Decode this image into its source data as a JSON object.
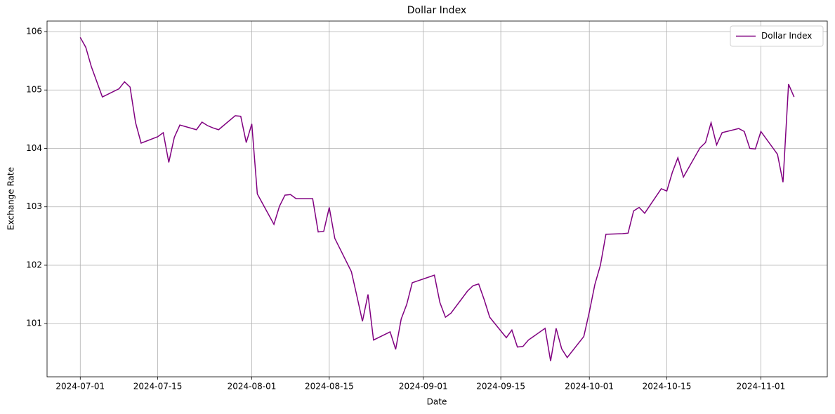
{
  "chart_data": {
    "type": "line",
    "title": "Dollar Index",
    "x_label": "Date",
    "y_label": "Exchange Rate",
    "x": [
      "2024-07-01",
      "2024-07-02",
      "2024-07-03",
      "2024-07-05",
      "2024-07-08",
      "2024-07-09",
      "2024-07-10",
      "2024-07-11",
      "2024-07-12",
      "2024-07-15",
      "2024-07-16",
      "2024-07-17",
      "2024-07-18",
      "2024-07-19",
      "2024-07-22",
      "2024-07-23",
      "2024-07-24",
      "2024-07-25",
      "2024-07-26",
      "2024-07-29",
      "2024-07-30",
      "2024-07-31",
      "2024-08-01",
      "2024-08-02",
      "2024-08-05",
      "2024-08-06",
      "2024-08-07",
      "2024-08-08",
      "2024-08-09",
      "2024-08-12",
      "2024-08-13",
      "2024-08-14",
      "2024-08-15",
      "2024-08-16",
      "2024-08-19",
      "2024-08-20",
      "2024-08-21",
      "2024-08-22",
      "2024-08-23",
      "2024-08-26",
      "2024-08-27",
      "2024-08-28",
      "2024-08-29",
      "2024-08-30",
      "2024-09-03",
      "2024-09-04",
      "2024-09-05",
      "2024-09-06",
      "2024-09-09",
      "2024-09-10",
      "2024-09-11",
      "2024-09-12",
      "2024-09-13",
      "2024-09-16",
      "2024-09-17",
      "2024-09-18",
      "2024-09-19",
      "2024-09-20",
      "2024-09-23",
      "2024-09-24",
      "2024-09-25",
      "2024-09-26",
      "2024-09-27",
      "2024-09-30",
      "2024-10-01",
      "2024-10-02",
      "2024-10-03",
      "2024-10-04",
      "2024-10-07",
      "2024-10-08",
      "2024-10-09",
      "2024-10-10",
      "2024-10-11",
      "2024-10-14",
      "2024-10-15",
      "2024-10-16",
      "2024-10-17",
      "2024-10-18",
      "2024-10-21",
      "2024-10-22",
      "2024-10-23",
      "2024-10-24",
      "2024-10-25",
      "2024-10-28",
      "2024-10-29",
      "2024-10-30",
      "2024-10-31",
      "2024-11-01",
      "2024-11-04",
      "2024-11-05",
      "2024-11-06",
      "2024-11-07"
    ],
    "series": [
      {
        "name": "Dollar Index",
        "color": "#800080",
        "values": [
          105.9,
          105.73,
          105.4,
          104.88,
          105.02,
          105.14,
          105.05,
          104.44,
          104.09,
          104.2,
          104.27,
          103.76,
          104.19,
          104.4,
          104.32,
          104.45,
          104.39,
          104.35,
          104.32,
          104.56,
          104.55,
          104.1,
          104.42,
          103.22,
          102.7,
          103.01,
          103.2,
          103.21,
          103.14,
          103.14,
          102.57,
          102.58,
          102.99,
          102.46,
          101.89,
          101.47,
          101.04,
          101.5,
          100.72,
          100.86,
          100.56,
          101.08,
          101.33,
          101.7,
          101.83,
          101.36,
          101.11,
          101.18,
          101.56,
          101.65,
          101.68,
          101.41,
          101.11,
          100.76,
          100.89,
          100.6,
          100.61,
          100.72,
          100.92,
          100.36,
          100.92,
          100.57,
          100.42,
          100.78,
          101.2,
          101.67,
          102.0,
          102.53,
          102.54,
          102.55,
          102.93,
          102.99,
          102.89,
          103.31,
          103.27,
          103.59,
          103.84,
          103.51,
          104.01,
          104.1,
          104.44,
          104.06,
          104.27,
          104.34,
          104.29,
          104.0,
          103.99,
          104.29,
          103.9,
          103.42,
          105.1,
          104.88
        ]
      }
    ],
    "xlim": [
      "2024-06-25",
      "2024-11-13"
    ],
    "xticks": [
      "2024-07-01",
      "2024-07-15",
      "2024-08-01",
      "2024-08-15",
      "2024-09-01",
      "2024-09-15",
      "2024-10-01",
      "2024-10-15",
      "2024-11-01"
    ],
    "ylim": [
      100.09,
      106.18
    ],
    "yticks": [
      101,
      102,
      103,
      104,
      105,
      106
    ],
    "grid": true,
    "legend": "upper right"
  }
}
